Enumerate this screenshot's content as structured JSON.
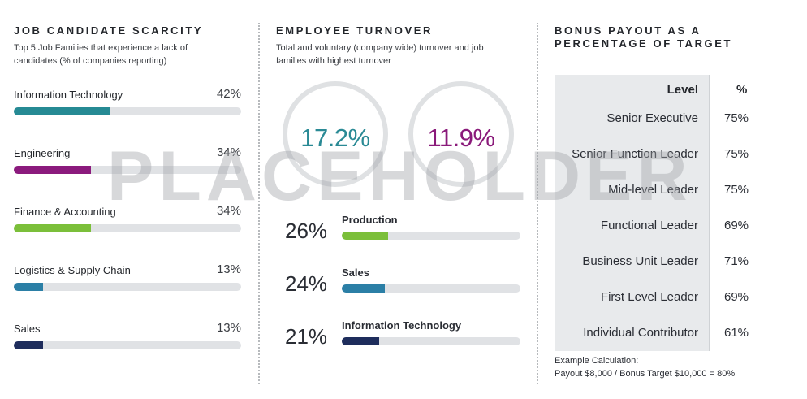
{
  "scarcity": {
    "title": "JOB CANDIDATE SCARCITY",
    "subtitle": "Top 5 Job Families that experience a lack of candidates (% of companies reporting)"
  },
  "turnover": {
    "title": "EMPLOYEE TURNOVER",
    "subtitle": "Total and voluntary (company wide) turnover and job families with highest turnover",
    "total": "17.2%",
    "voluntary": "11.9%",
    "total_color": "#2a8a95",
    "voluntary_color": "#8a1a7a"
  },
  "bonus": {
    "title": "BONUS PAYOUT AS A PERCENTAGE OF TARGET",
    "col_level": "Level",
    "col_pct": "%",
    "note_line1": "Example Calculation:",
    "note_line2": "Payout $8,000 / Bonus Target $10,000 = 80%"
  },
  "watermark": "PLACEHOLDER",
  "chart_data": [
    {
      "type": "bar",
      "title": "JOB CANDIDATE SCARCITY",
      "categories": [
        "Information Technology",
        "Engineering",
        "Finance & Accounting",
        "Logistics & Supply Chain",
        "Sales"
      ],
      "values": [
        42,
        34,
        34,
        13,
        13
      ],
      "labels": [
        "42%",
        "34%",
        "34%",
        "13%",
        "13%"
      ],
      "colors": [
        "#268a94",
        "#8b1a7d",
        "#7bbf3a",
        "#2b7fa6",
        "#1e2d5c"
      ],
      "ylim": [
        0,
        100
      ]
    },
    {
      "type": "bar",
      "title": "EMPLOYEE TURNOVER",
      "categories": [
        "Production",
        "Sales",
        "Information Technology"
      ],
      "values": [
        26,
        24,
        21
      ],
      "labels": [
        "26%",
        "24%",
        "21%"
      ],
      "colors": [
        "#7bbf3a",
        "#2b7fa6",
        "#1e2d5c"
      ],
      "ylim": [
        0,
        100
      ]
    },
    {
      "type": "table",
      "title": "BONUS PAYOUT AS A PERCENTAGE OF TARGET",
      "columns": [
        "Level",
        "%"
      ],
      "rows": [
        [
          "Senior Executive",
          "75%"
        ],
        [
          "Senior Function Leader",
          "75%"
        ],
        [
          "Mid-level Leader",
          "75%"
        ],
        [
          "Functional Leader",
          "69%"
        ],
        [
          "Business Unit Leader",
          "71%"
        ],
        [
          "First Level Leader",
          "69%"
        ],
        [
          "Individual Contributor",
          "61%"
        ]
      ]
    }
  ]
}
